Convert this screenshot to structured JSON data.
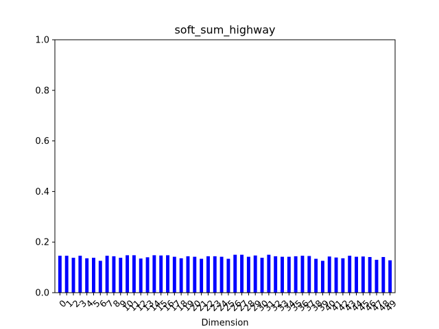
{
  "chart_data": {
    "type": "bar",
    "title": "soft_sum_highway",
    "xlabel": "Dimension",
    "ylabel": "",
    "ylim": [
      0,
      1.0
    ],
    "yticks": [
      "0.0",
      "0.2",
      "0.4",
      "0.6",
      "0.8",
      "1.0"
    ],
    "grid": false,
    "legend": "none",
    "bar_color": "#0000ff",
    "categories": [
      "0",
      "1",
      "2",
      "3",
      "4",
      "5",
      "6",
      "7",
      "8",
      "9",
      "10",
      "11",
      "12",
      "13",
      "14",
      "15",
      "16",
      "17",
      "18",
      "19",
      "20",
      "21",
      "22",
      "23",
      "24",
      "25",
      "26",
      "27",
      "28",
      "29",
      "30",
      "31",
      "32",
      "33",
      "34",
      "35",
      "36",
      "37",
      "38",
      "39",
      "40",
      "41",
      "42",
      "43",
      "44",
      "45",
      "46",
      "47",
      "48",
      "49"
    ],
    "values": [
      0.146,
      0.146,
      0.138,
      0.146,
      0.136,
      0.138,
      0.126,
      0.146,
      0.144,
      0.138,
      0.148,
      0.148,
      0.135,
      0.14,
      0.148,
      0.147,
      0.148,
      0.142,
      0.136,
      0.144,
      0.142,
      0.134,
      0.144,
      0.144,
      0.142,
      0.134,
      0.15,
      0.15,
      0.142,
      0.147,
      0.138,
      0.15,
      0.144,
      0.142,
      0.142,
      0.144,
      0.146,
      0.145,
      0.134,
      0.126,
      0.143,
      0.139,
      0.136,
      0.146,
      0.142,
      0.143,
      0.141,
      0.13,
      0.141,
      0.128
    ]
  }
}
